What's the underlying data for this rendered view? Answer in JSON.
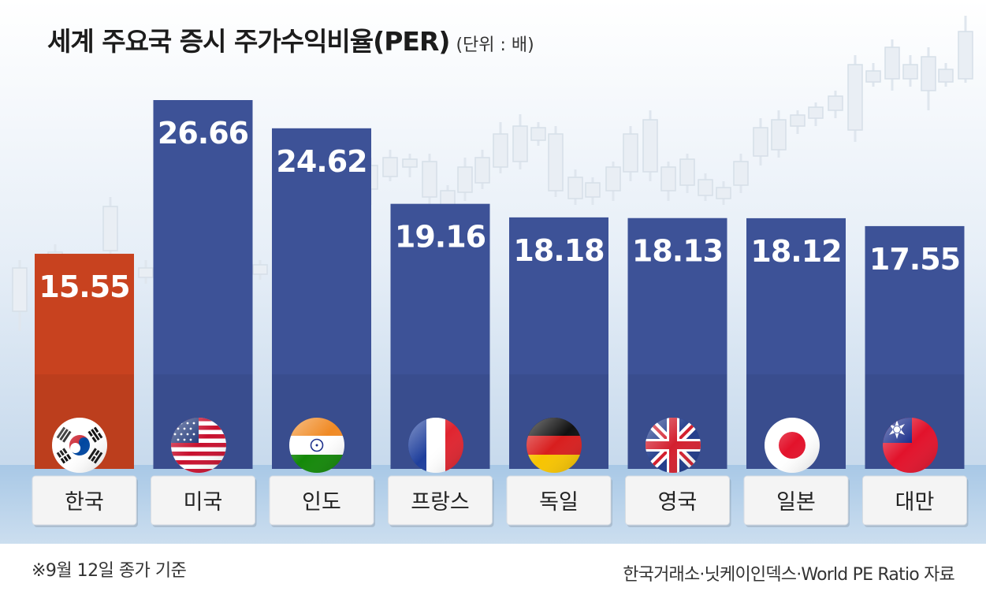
{
  "header": {
    "title": "세계 주요국 증시 주가수익비율(PER)",
    "unit": "(단위 : 배)"
  },
  "footer": {
    "note": "※9월 12일 종가 기준",
    "source": "한국거래소·닛케이인덱스·World PE Ratio 자료"
  },
  "colors": {
    "highlight_bar": "#c8421f",
    "default_bar": "#3d5297",
    "label_box": "#f4f4f4",
    "floor": "#9fc2e2"
  },
  "chart_data": {
    "type": "bar",
    "title": "세계 주요국 증시 주가수익비율(PER)",
    "unit": "(단위 : 배)",
    "categories": [
      "한국",
      "미국",
      "인도",
      "프랑스",
      "독일",
      "영국",
      "일본",
      "대만"
    ],
    "values": [
      15.55,
      26.66,
      24.62,
      19.16,
      18.18,
      18.13,
      18.12,
      17.55
    ],
    "value_labels": [
      "15.55",
      "26.66",
      "24.62",
      "19.16",
      "18.18",
      "18.13",
      "18.12",
      "17.55"
    ],
    "flags": [
      "korea-flag-icon",
      "usa-flag-icon",
      "india-flag-icon",
      "france-flag-icon",
      "germany-flag-icon",
      "uk-flag-icon",
      "japan-flag-icon",
      "taiwan-flag-icon"
    ],
    "highlight_index": 0,
    "grid": false,
    "legend": "none"
  }
}
